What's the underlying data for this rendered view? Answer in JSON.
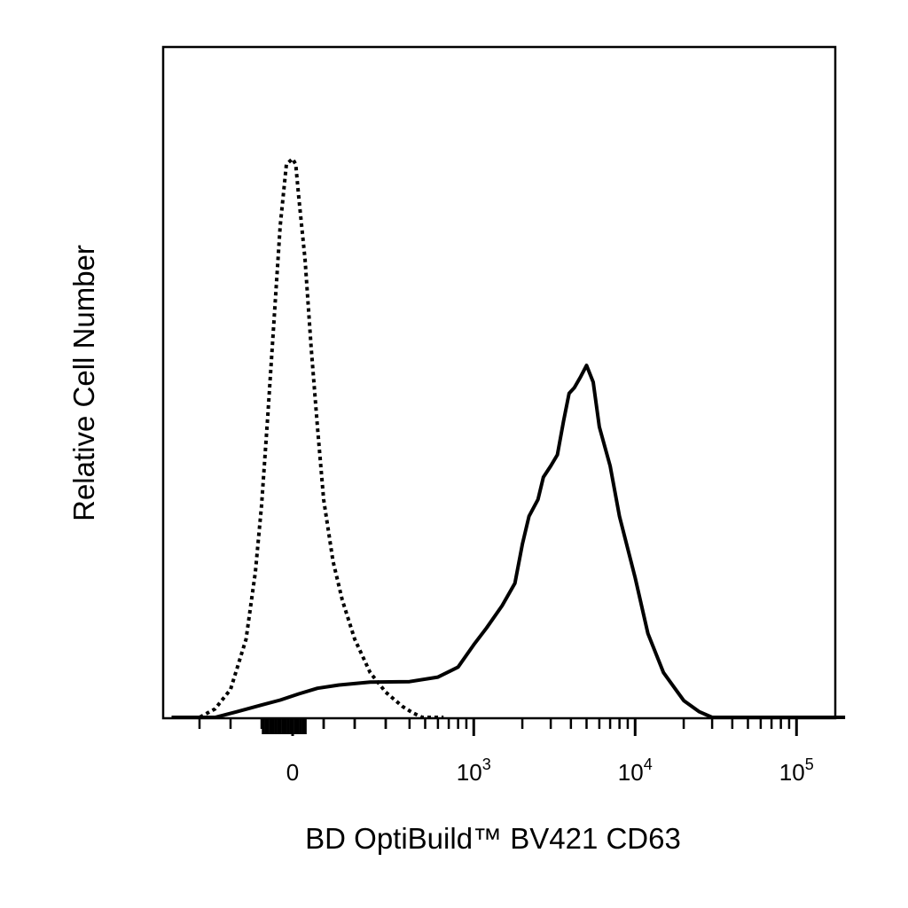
{
  "chart_data": {
    "type": "line",
    "title": "",
    "xlabel": "BD OptiBuild™ BV421 CD63",
    "ylabel": "Relative Cell Number",
    "x_scale": "biexponential",
    "xlim": [
      -400,
      200000
    ],
    "ylim": [
      0,
      1
    ],
    "grid": false,
    "legend": "none",
    "x_tick_labels": [
      {
        "value": 0,
        "base": "0",
        "exp": ""
      },
      {
        "value": 1000,
        "base": "10",
        "exp": "3"
      },
      {
        "value": 10000,
        "base": "10",
        "exp": "4"
      },
      {
        "value": 100000,
        "base": "10",
        "exp": "5"
      }
    ],
    "series": [
      {
        "style": "dotted",
        "color": "#000000",
        "x": [
          -390,
          -300,
          -250,
          -200,
          -150,
          -120,
          -100,
          -80,
          -60,
          -40,
          -20,
          0,
          10,
          20,
          40,
          60,
          80,
          100,
          130,
          160,
          200,
          250,
          300,
          360,
          420,
          480,
          560,
          650
        ],
        "y": [
          0.0,
          0.0,
          0.015,
          0.05,
          0.14,
          0.26,
          0.38,
          0.54,
          0.71,
          0.88,
          0.99,
          1.0,
          0.99,
          0.93,
          0.82,
          0.66,
          0.52,
          0.39,
          0.28,
          0.21,
          0.14,
          0.08,
          0.045,
          0.02,
          0.008,
          0.0,
          0.0,
          0.0
        ]
      },
      {
        "style": "solid",
        "color": "#000000",
        "x": [
          -390,
          -250,
          -180,
          -100,
          -40,
          20,
          80,
          150,
          250,
          400,
          600,
          800,
          1000,
          1200,
          1500,
          1800,
          2000,
          2200,
          2500,
          2700,
          3000,
          3300,
          3600,
          3900,
          4200,
          4600,
          5000,
          5500,
          6000,
          7000,
          8000,
          10000,
          12000,
          15000,
          20000,
          25000,
          30000,
          40000,
          60000,
          100000,
          200000
        ],
        "y": [
          0.0,
          0.0,
          0.01,
          0.022,
          0.031,
          0.042,
          0.052,
          0.058,
          0.063,
          0.064,
          0.072,
          0.09,
          0.13,
          0.16,
          0.2,
          0.24,
          0.31,
          0.36,
          0.39,
          0.43,
          0.45,
          0.47,
          0.53,
          0.58,
          0.59,
          0.61,
          0.63,
          0.6,
          0.52,
          0.45,
          0.36,
          0.25,
          0.15,
          0.08,
          0.03,
          0.01,
          0.0,
          0.0,
          0.0,
          0.0,
          0.0
        ]
      }
    ]
  }
}
